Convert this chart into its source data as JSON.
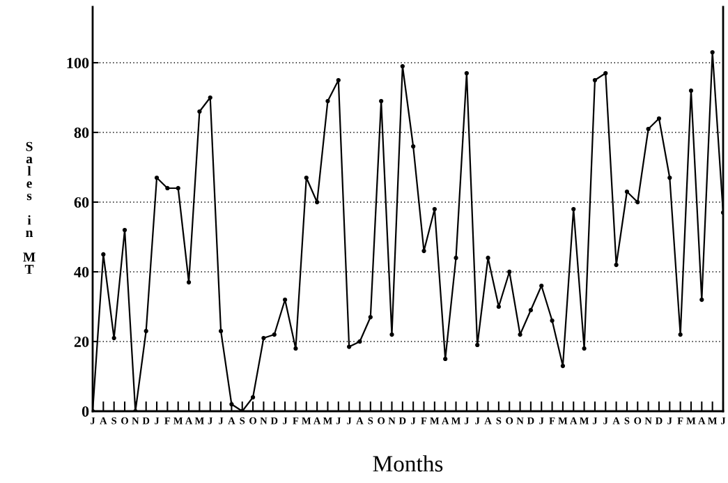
{
  "chart_data": {
    "type": "line",
    "xlabel": "Months",
    "ylabel": "Sales in MT",
    "categories": [
      "J",
      "A",
      "S",
      "O",
      "N",
      "D",
      "J",
      "F",
      "M",
      "A",
      "M",
      "J",
      "J",
      "A",
      "S",
      "O",
      "N",
      "D",
      "J",
      "F",
      "M",
      "A",
      "M",
      "J",
      "J",
      "A",
      "S",
      "O",
      "N",
      "D",
      "J",
      "F",
      "M",
      "A",
      "M",
      "J",
      "J",
      "A",
      "S",
      "O",
      "N",
      "D",
      "J",
      "F",
      "M",
      "A",
      "M",
      "J",
      "J",
      "A",
      "S",
      "O",
      "N",
      "D",
      "J",
      "F",
      "M",
      "A",
      "M",
      "J"
    ],
    "series": [
      {
        "color": "#000000",
        "values": [
          0,
          45,
          21,
          52,
          0,
          23,
          67,
          64,
          64,
          37,
          86,
          90,
          23,
          2,
          0,
          4,
          21,
          22,
          32,
          18,
          67,
          60,
          89,
          95,
          18.5,
          20,
          27,
          89,
          22,
          99,
          76,
          46,
          58,
          15,
          44,
          97,
          19,
          44,
          30,
          40,
          22,
          29,
          36,
          26,
          13,
          58,
          18,
          95,
          97,
          42,
          63,
          60,
          81,
          84,
          67,
          22,
          92,
          32,
          103,
          57
        ]
      }
    ],
    "ylim": [
      0,
      116
    ],
    "yticks": [
      0,
      20,
      40,
      60,
      80,
      100
    ],
    "grid": "y",
    "marker": "circle",
    "line_style": "solid"
  }
}
